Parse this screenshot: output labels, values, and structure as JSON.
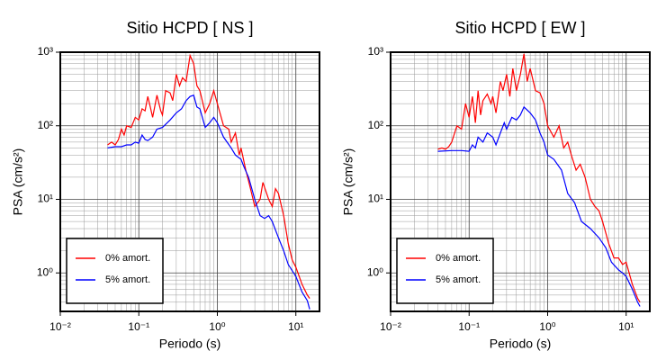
{
  "chart_data": [
    {
      "type": "line",
      "title": "Sitio HCPD [ NS ]",
      "xlabel": "Periodo (s)",
      "ylabel": "PSA (cm/s²)",
      "xscale": "log",
      "yscale": "log",
      "grid": true,
      "legend": "lower left",
      "xlim": [
        0.01,
        20
      ],
      "ylim": [
        0.3,
        1000
      ],
      "xticks": [
        {
          "value": 0.01,
          "label": "10⁻²"
        },
        {
          "value": 0.1,
          "label": "10⁻¹"
        },
        {
          "value": 1,
          "label": "10⁰"
        },
        {
          "value": 10,
          "label": "10¹"
        }
      ],
      "yticks": [
        {
          "value": 1,
          "label": "10⁰"
        },
        {
          "value": 10,
          "label": "10¹"
        },
        {
          "value": 100,
          "label": "10²"
        },
        {
          "value": 1000,
          "label": "10³"
        }
      ],
      "series": [
        {
          "name": "0% amort.",
          "color": "#ff0000",
          "x": [
            0.04,
            0.045,
            0.05,
            0.055,
            0.06,
            0.065,
            0.07,
            0.08,
            0.09,
            0.1,
            0.11,
            0.12,
            0.13,
            0.14,
            0.15,
            0.17,
            0.19,
            0.2,
            0.22,
            0.25,
            0.27,
            0.3,
            0.33,
            0.36,
            0.4,
            0.45,
            0.5,
            0.55,
            0.6,
            0.7,
            0.8,
            0.9,
            1.0,
            1.2,
            1.4,
            1.5,
            1.7,
            1.9,
            2.0,
            2.3,
            2.6,
            3.0,
            3.5,
            3.8,
            4.5,
            5.0,
            5.5,
            6.0,
            7,
            8,
            9,
            10,
            12,
            14,
            15
          ],
          "values": [
            55,
            60,
            55,
            65,
            90,
            75,
            100,
            95,
            130,
            120,
            170,
            160,
            250,
            180,
            130,
            260,
            160,
            140,
            300,
            280,
            220,
            500,
            350,
            450,
            400,
            900,
            700,
            350,
            300,
            150,
            200,
            300,
            200,
            100,
            90,
            60,
            80,
            40,
            50,
            25,
            15,
            8,
            10,
            17,
            10,
            8,
            14,
            12,
            6,
            2.5,
            1.5,
            1.2,
            0.7,
            0.5,
            0.45
          ]
        },
        {
          "name": "5% amort.",
          "color": "#0000ff",
          "x": [
            0.04,
            0.05,
            0.06,
            0.07,
            0.08,
            0.09,
            0.1,
            0.11,
            0.12,
            0.13,
            0.15,
            0.17,
            0.2,
            0.25,
            0.3,
            0.35,
            0.4,
            0.45,
            0.5,
            0.55,
            0.6,
            0.7,
            0.8,
            0.9,
            1.0,
            1.2,
            1.5,
            1.7,
            2.0,
            2.2,
            2.5,
            3.0,
            3.5,
            4.0,
            4.5,
            5.0,
            6,
            7,
            8,
            10,
            12,
            14,
            15
          ],
          "values": [
            50,
            52,
            52,
            55,
            55,
            60,
            58,
            75,
            65,
            63,
            70,
            90,
            95,
            120,
            150,
            170,
            220,
            250,
            260,
            180,
            170,
            95,
            110,
            130,
            110,
            70,
            50,
            40,
            35,
            27,
            20,
            10,
            6,
            5.5,
            6,
            5,
            3,
            2,
            1.3,
            0.9,
            0.55,
            0.42,
            0.32
          ]
        }
      ]
    },
    {
      "type": "line",
      "title": "Sitio HCPD [ EW ]",
      "xlabel": "Periodo (s)",
      "ylabel": "PSA (cm/s²)",
      "xscale": "log",
      "yscale": "log",
      "grid": true,
      "legend": "lower left",
      "xlim": [
        0.01,
        20
      ],
      "ylim": [
        0.3,
        1000
      ],
      "xticks": [
        {
          "value": 0.01,
          "label": "10⁻²"
        },
        {
          "value": 0.1,
          "label": "10⁻¹"
        },
        {
          "value": 1,
          "label": "10⁰"
        },
        {
          "value": 10,
          "label": "10¹"
        }
      ],
      "yticks": [
        {
          "value": 1,
          "label": "10⁰"
        },
        {
          "value": 10,
          "label": "10¹"
        },
        {
          "value": 100,
          "label": "10²"
        },
        {
          "value": 1000,
          "label": "10³"
        }
      ],
      "series": [
        {
          "name": "0% amort.",
          "color": "#ff0000",
          "x": [
            0.04,
            0.045,
            0.05,
            0.055,
            0.06,
            0.07,
            0.08,
            0.09,
            0.1,
            0.11,
            0.12,
            0.13,
            0.14,
            0.15,
            0.17,
            0.19,
            0.2,
            0.22,
            0.25,
            0.27,
            0.3,
            0.33,
            0.36,
            0.4,
            0.45,
            0.5,
            0.55,
            0.6,
            0.7,
            0.8,
            0.9,
            1.0,
            1.2,
            1.4,
            1.6,
            1.8,
            2.0,
            2.3,
            2.6,
            3.0,
            3.5,
            4,
            4.5,
            5,
            5.5,
            6,
            7,
            8,
            9,
            10,
            12,
            14,
            15
          ],
          "values": [
            48,
            50,
            48,
            52,
            60,
            100,
            90,
            200,
            130,
            250,
            110,
            300,
            140,
            220,
            270,
            200,
            250,
            150,
            400,
            300,
            500,
            250,
            600,
            300,
            500,
            950,
            400,
            600,
            300,
            280,
            200,
            100,
            70,
            100,
            50,
            60,
            40,
            25,
            30,
            20,
            10,
            8,
            7,
            5,
            3.5,
            2.5,
            1.6,
            1.6,
            1.3,
            1.4,
            0.7,
            0.45,
            0.4
          ]
        },
        {
          "name": "5% amort.",
          "color": "#0000ff",
          "x": [
            0.04,
            0.06,
            0.08,
            0.1,
            0.11,
            0.12,
            0.13,
            0.15,
            0.17,
            0.2,
            0.22,
            0.25,
            0.28,
            0.3,
            0.35,
            0.4,
            0.45,
            0.5,
            0.6,
            0.7,
            0.8,
            0.9,
            1.0,
            1.2,
            1.5,
            1.8,
            2.2,
            2.7,
            3.5,
            4.5,
            5.5,
            6.5,
            8,
            9,
            10,
            12,
            14,
            15
          ],
          "values": [
            45,
            46,
            46,
            45,
            55,
            50,
            70,
            60,
            80,
            70,
            55,
            80,
            110,
            90,
            130,
            120,
            140,
            180,
            150,
            120,
            80,
            60,
            40,
            35,
            25,
            12,
            9,
            5,
            4,
            3,
            2.2,
            1.4,
            1.1,
            1.0,
            0.9,
            0.6,
            0.4,
            0.35
          ]
        }
      ]
    }
  ]
}
